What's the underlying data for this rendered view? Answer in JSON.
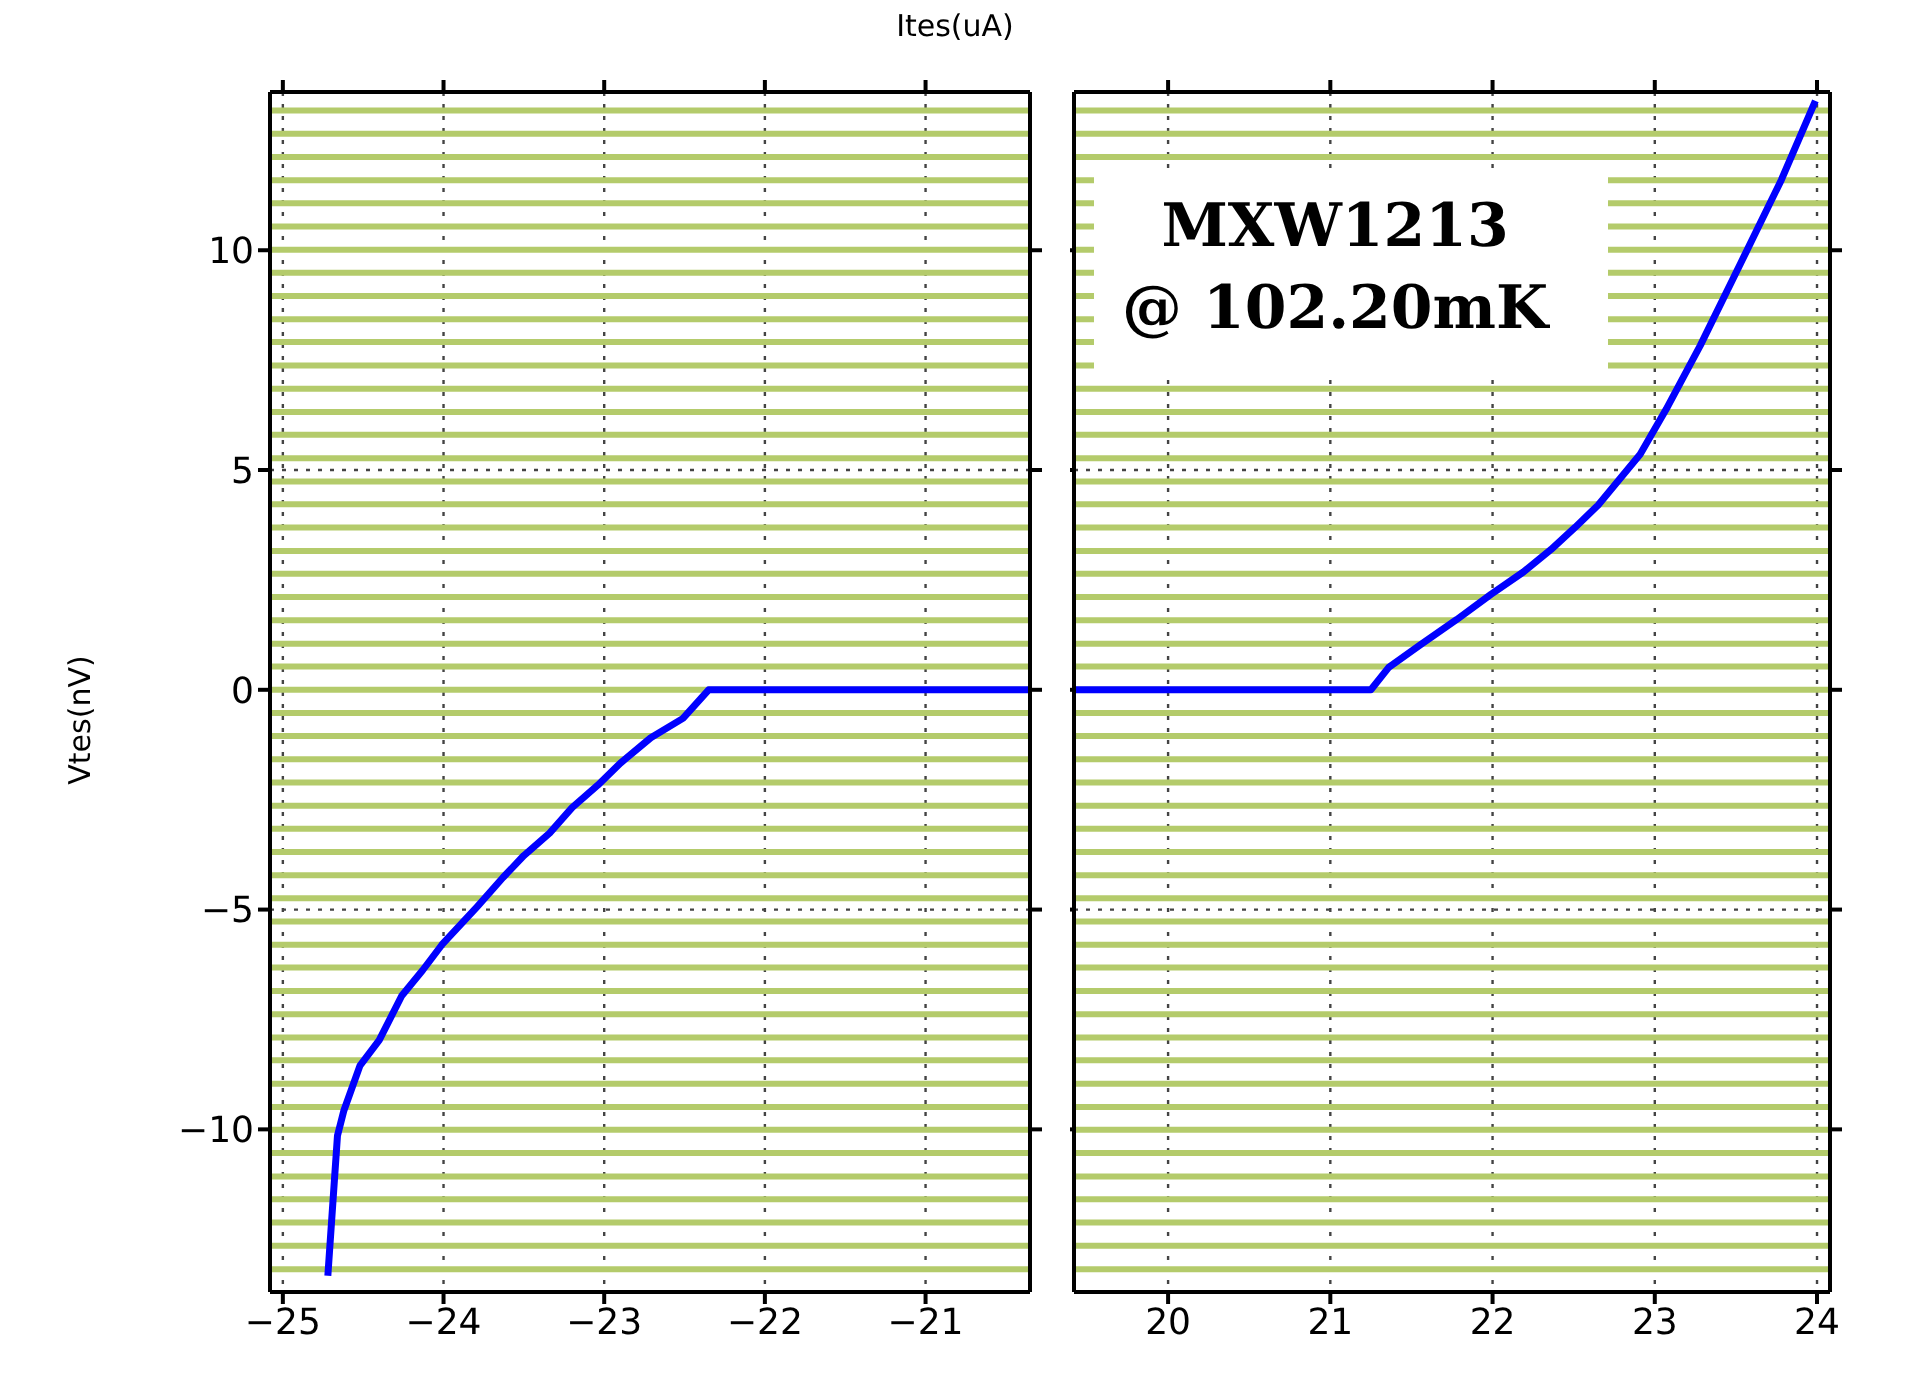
{
  "chart_data": [
    {
      "type": "line",
      "xlabel": "Ites(uA)",
      "ylabel": "Vtes(nV)",
      "xlim": [
        -25.08,
        -20.35
      ],
      "xticks": [
        {
          "value": -25,
          "label": "−25"
        },
        {
          "value": -24,
          "label": "−24"
        },
        {
          "value": -23,
          "label": "−23"
        },
        {
          "value": -22,
          "label": "−22"
        },
        {
          "value": -21,
          "label": "−21"
        }
      ],
      "ylim": [
        -13.7,
        13.6
      ],
      "yticks": [
        {
          "value": -10,
          "label": "−10"
        },
        {
          "value": -5,
          "label": "−5"
        },
        0,
        5,
        10
      ],
      "grid": true,
      "line_style": "solid",
      "marker": "none",
      "ref_lines": [
        {
          "axis": "y",
          "value": -13.18,
          "color": "#b4cb6b"
        },
        {
          "axis": "y",
          "value": -12.65,
          "color": "#b4cb6b"
        },
        {
          "axis": "y",
          "value": -12.12,
          "color": "#b4cb6b"
        },
        {
          "axis": "y",
          "value": -11.59,
          "color": "#b4cb6b"
        },
        {
          "axis": "y",
          "value": -11.07,
          "color": "#b4cb6b"
        },
        {
          "axis": "y",
          "value": -10.54,
          "color": "#b4cb6b"
        },
        {
          "axis": "y",
          "value": -10.01,
          "color": "#b4cb6b"
        },
        {
          "axis": "y",
          "value": -9.49,
          "color": "#b4cb6b"
        },
        {
          "axis": "y",
          "value": -8.96,
          "color": "#b4cb6b"
        },
        {
          "axis": "y",
          "value": -8.43,
          "color": "#b4cb6b"
        },
        {
          "axis": "y",
          "value": -7.91,
          "color": "#b4cb6b"
        },
        {
          "axis": "y",
          "value": -7.38,
          "color": "#b4cb6b"
        },
        {
          "axis": "y",
          "value": -6.85,
          "color": "#b4cb6b"
        },
        {
          "axis": "y",
          "value": -6.32,
          "color": "#b4cb6b"
        },
        {
          "axis": "y",
          "value": -5.8,
          "color": "#b4cb6b"
        },
        {
          "axis": "y",
          "value": -5.27,
          "color": "#b4cb6b"
        },
        {
          "axis": "y",
          "value": -4.74,
          "color": "#b4cb6b"
        },
        {
          "axis": "y",
          "value": -4.22,
          "color": "#b4cb6b"
        },
        {
          "axis": "y",
          "value": -3.69,
          "color": "#b4cb6b"
        },
        {
          "axis": "y",
          "value": -3.16,
          "color": "#b4cb6b"
        },
        {
          "axis": "y",
          "value": -2.64,
          "color": "#b4cb6b"
        },
        {
          "axis": "y",
          "value": -2.11,
          "color": "#b4cb6b"
        },
        {
          "axis": "y",
          "value": -1.58,
          "color": "#b4cb6b"
        },
        {
          "axis": "y",
          "value": -1.05,
          "color": "#b4cb6b"
        },
        {
          "axis": "y",
          "value": -0.53,
          "color": "#b4cb6b"
        },
        {
          "axis": "y",
          "value": 0,
          "color": "#b4cb6b"
        },
        {
          "axis": "y",
          "value": 0.53,
          "color": "#b4cb6b"
        },
        {
          "axis": "y",
          "value": 1.05,
          "color": "#b4cb6b"
        },
        {
          "axis": "y",
          "value": 1.58,
          "color": "#b4cb6b"
        },
        {
          "axis": "y",
          "value": 2.11,
          "color": "#b4cb6b"
        },
        {
          "axis": "y",
          "value": 2.64,
          "color": "#b4cb6b"
        },
        {
          "axis": "y",
          "value": 3.16,
          "color": "#b4cb6b"
        },
        {
          "axis": "y",
          "value": 3.69,
          "color": "#b4cb6b"
        },
        {
          "axis": "y",
          "value": 4.22,
          "color": "#b4cb6b"
        },
        {
          "axis": "y",
          "value": 4.74,
          "color": "#b4cb6b"
        },
        {
          "axis": "y",
          "value": 5.27,
          "color": "#b4cb6b"
        },
        {
          "axis": "y",
          "value": 5.8,
          "color": "#b4cb6b"
        },
        {
          "axis": "y",
          "value": 6.32,
          "color": "#b4cb6b"
        },
        {
          "axis": "y",
          "value": 6.85,
          "color": "#b4cb6b"
        },
        {
          "axis": "y",
          "value": 7.38,
          "color": "#b4cb6b"
        },
        {
          "axis": "y",
          "value": 7.91,
          "color": "#b4cb6b"
        },
        {
          "axis": "y",
          "value": 8.43,
          "color": "#b4cb6b"
        },
        {
          "axis": "y",
          "value": 8.96,
          "color": "#b4cb6b"
        },
        {
          "axis": "y",
          "value": 9.49,
          "color": "#b4cb6b"
        },
        {
          "axis": "y",
          "value": 10.01,
          "color": "#b4cb6b"
        },
        {
          "axis": "y",
          "value": 10.54,
          "color": "#b4cb6b"
        },
        {
          "axis": "y",
          "value": 11.07,
          "color": "#b4cb6b"
        },
        {
          "axis": "y",
          "value": 11.59,
          "color": "#b4cb6b"
        },
        {
          "axis": "y",
          "value": 12.12,
          "color": "#b4cb6b"
        },
        {
          "axis": "y",
          "value": 12.65,
          "color": "#b4cb6b"
        },
        {
          "axis": "y",
          "value": 13.18,
          "color": "#b4cb6b"
        }
      ],
      "series": [
        {
          "color": "#0000ff",
          "x": [
            -24.72,
            -24.66,
            -24.62,
            -24.52,
            -24.4,
            -24.26,
            -24.13,
            -24.01,
            -23.79,
            -23.63,
            -23.5,
            -23.34,
            -23.2,
            -23.04,
            -22.9,
            -22.71,
            -22.51,
            -22.35,
            -20.35
          ],
          "values": [
            -13.33,
            -10.14,
            -9.57,
            -8.55,
            -7.97,
            -6.96,
            -6.38,
            -5.8,
            -4.93,
            -4.27,
            -3.77,
            -3.26,
            -2.68,
            -2.17,
            -1.67,
            -1.09,
            -0.65,
            0,
            0
          ]
        }
      ]
    },
    {
      "type": "line",
      "xlim": [
        19.42,
        24.08
      ],
      "xticks": [
        20,
        21,
        22,
        23,
        24
      ],
      "ylim": [
        -13.7,
        13.6
      ],
      "yticks": [
        -10,
        -5,
        0,
        5,
        10
      ],
      "tick_labels": "x",
      "grid": true,
      "line_style": "solid",
      "marker": "none",
      "annotations": [
        "MXW1213",
        "@ 102.20mK"
      ],
      "ref_lines": [
        {
          "axis": "y",
          "value": -13.18,
          "color": "#b4cb6b"
        },
        {
          "axis": "y",
          "value": -12.65,
          "color": "#b4cb6b"
        },
        {
          "axis": "y",
          "value": -12.12,
          "color": "#b4cb6b"
        },
        {
          "axis": "y",
          "value": -11.59,
          "color": "#b4cb6b"
        },
        {
          "axis": "y",
          "value": -11.07,
          "color": "#b4cb6b"
        },
        {
          "axis": "y",
          "value": -10.54,
          "color": "#b4cb6b"
        },
        {
          "axis": "y",
          "value": -10.01,
          "color": "#b4cb6b"
        },
        {
          "axis": "y",
          "value": -9.49,
          "color": "#b4cb6b"
        },
        {
          "axis": "y",
          "value": -8.96,
          "color": "#b4cb6b"
        },
        {
          "axis": "y",
          "value": -8.43,
          "color": "#b4cb6b"
        },
        {
          "axis": "y",
          "value": -7.91,
          "color": "#b4cb6b"
        },
        {
          "axis": "y",
          "value": -7.38,
          "color": "#b4cb6b"
        },
        {
          "axis": "y",
          "value": -6.85,
          "color": "#b4cb6b"
        },
        {
          "axis": "y",
          "value": -6.32,
          "color": "#b4cb6b"
        },
        {
          "axis": "y",
          "value": -5.8,
          "color": "#b4cb6b"
        },
        {
          "axis": "y",
          "value": -5.27,
          "color": "#b4cb6b"
        },
        {
          "axis": "y",
          "value": -4.74,
          "color": "#b4cb6b"
        },
        {
          "axis": "y",
          "value": -4.22,
          "color": "#b4cb6b"
        },
        {
          "axis": "y",
          "value": -3.69,
          "color": "#b4cb6b"
        },
        {
          "axis": "y",
          "value": -3.16,
          "color": "#b4cb6b"
        },
        {
          "axis": "y",
          "value": -2.64,
          "color": "#b4cb6b"
        },
        {
          "axis": "y",
          "value": -2.11,
          "color": "#b4cb6b"
        },
        {
          "axis": "y",
          "value": -1.58,
          "color": "#b4cb6b"
        },
        {
          "axis": "y",
          "value": -1.05,
          "color": "#b4cb6b"
        },
        {
          "axis": "y",
          "value": -0.53,
          "color": "#b4cb6b"
        },
        {
          "axis": "y",
          "value": 0,
          "color": "#b4cb6b"
        },
        {
          "axis": "y",
          "value": 0.53,
          "color": "#b4cb6b"
        },
        {
          "axis": "y",
          "value": 1.05,
          "color": "#b4cb6b"
        },
        {
          "axis": "y",
          "value": 1.58,
          "color": "#b4cb6b"
        },
        {
          "axis": "y",
          "value": 2.11,
          "color": "#b4cb6b"
        },
        {
          "axis": "y",
          "value": 2.64,
          "color": "#b4cb6b"
        },
        {
          "axis": "y",
          "value": 3.16,
          "color": "#b4cb6b"
        },
        {
          "axis": "y",
          "value": 3.69,
          "color": "#b4cb6b"
        },
        {
          "axis": "y",
          "value": 4.22,
          "color": "#b4cb6b"
        },
        {
          "axis": "y",
          "value": 4.74,
          "color": "#b4cb6b"
        },
        {
          "axis": "y",
          "value": 5.27,
          "color": "#b4cb6b"
        },
        {
          "axis": "y",
          "value": 5.8,
          "color": "#b4cb6b"
        },
        {
          "axis": "y",
          "value": 6.32,
          "color": "#b4cb6b"
        },
        {
          "axis": "y",
          "value": 6.85,
          "color": "#b4cb6b"
        },
        {
          "axis": "y",
          "value": 7.38,
          "color": "#b4cb6b"
        },
        {
          "axis": "y",
          "value": 7.91,
          "color": "#b4cb6b"
        },
        {
          "axis": "y",
          "value": 8.43,
          "color": "#b4cb6b"
        },
        {
          "axis": "y",
          "value": 8.96,
          "color": "#b4cb6b"
        },
        {
          "axis": "y",
          "value": 9.49,
          "color": "#b4cb6b"
        },
        {
          "axis": "y",
          "value": 10.01,
          "color": "#b4cb6b"
        },
        {
          "axis": "y",
          "value": 10.54,
          "color": "#b4cb6b"
        },
        {
          "axis": "y",
          "value": 11.07,
          "color": "#b4cb6b"
        },
        {
          "axis": "y",
          "value": 11.59,
          "color": "#b4cb6b"
        },
        {
          "axis": "y",
          "value": 12.12,
          "color": "#b4cb6b"
        },
        {
          "axis": "y",
          "value": 12.65,
          "color": "#b4cb6b"
        },
        {
          "axis": "y",
          "value": 13.18,
          "color": "#b4cb6b"
        }
      ],
      "series": [
        {
          "color": "#0000ff",
          "x": [
            19.42,
            21.25,
            21.36,
            21.55,
            21.78,
            21.99,
            22.19,
            22.36,
            22.51,
            22.65,
            22.78,
            22.91,
            23.07,
            23.28,
            23.53,
            23.78,
            23.99
          ],
          "values": [
            0,
            0,
            0.51,
            1.01,
            1.6,
            2.17,
            2.68,
            3.19,
            3.7,
            4.2,
            4.78,
            5.36,
            6.38,
            7.83,
            9.71,
            11.6,
            13.4
          ]
        }
      ]
    }
  ]
}
